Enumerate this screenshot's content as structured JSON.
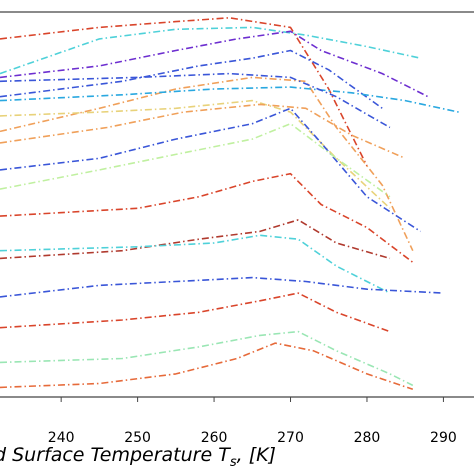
{
  "chart_data": {
    "type": "line",
    "xlabel": "d Surface Temperature T_s, [K]",
    "xlabel_parts": {
      "main": "d Surface Temperature T",
      "sub": "s",
      "tail": ", [K]"
    },
    "xlim": [
      232,
      294
    ],
    "ylim": [
      0,
      1
    ],
    "x_ticks": [
      240,
      250,
      260,
      270,
      280,
      290
    ],
    "x_tick_labels": [
      "240",
      "250",
      "260",
      "270",
      "280",
      "290"
    ],
    "grid": false,
    "legend": "none",
    "line_style": "dash-dot",
    "series": [
      {
        "color": "#d9452b",
        "x": [
          232,
          245,
          255,
          262,
          270,
          275,
          280
        ],
        "y": [
          0.93,
          0.96,
          0.975,
          0.985,
          0.96,
          0.8,
          0.6
        ]
      },
      {
        "color": "#4fd1d9",
        "x": [
          232,
          245,
          255,
          265,
          272,
          280,
          287
        ],
        "y": [
          0.84,
          0.93,
          0.955,
          0.96,
          0.94,
          0.91,
          0.88
        ]
      },
      {
        "color": "#3a56d8",
        "x": [
          232,
          248,
          258,
          265,
          270,
          275,
          282
        ],
        "y": [
          0.78,
          0.82,
          0.86,
          0.88,
          0.9,
          0.85,
          0.75
        ]
      },
      {
        "color": "#6d2fd0",
        "x": [
          232,
          245,
          255,
          263,
          270,
          274,
          282,
          288
        ],
        "y": [
          0.83,
          0.86,
          0.9,
          0.93,
          0.95,
          0.9,
          0.84,
          0.78
        ]
      },
      {
        "color": "#f0a05a",
        "x": [
          232,
          245,
          255,
          265,
          272,
          276,
          282,
          286
        ],
        "y": [
          0.69,
          0.75,
          0.8,
          0.83,
          0.82,
          0.7,
          0.55,
          0.38
        ]
      },
      {
        "color": "#2aa8e0",
        "x": [
          232,
          248,
          260,
          270,
          278,
          285,
          292
        ],
        "y": [
          0.77,
          0.785,
          0.8,
          0.805,
          0.79,
          0.77,
          0.74
        ]
      },
      {
        "color": "#e8d27a",
        "x": [
          232,
          245,
          255,
          265,
          270,
          276,
          283
        ],
        "y": [
          0.73,
          0.74,
          0.75,
          0.77,
          0.74,
          0.62,
          0.49
        ]
      },
      {
        "color": "#3a56d8",
        "x": [
          232,
          245,
          255,
          265,
          270,
          274,
          280,
          287
        ],
        "y": [
          0.59,
          0.62,
          0.67,
          0.71,
          0.75,
          0.66,
          0.52,
          0.43
        ]
      },
      {
        "color": "#c0f0a0",
        "x": [
          232,
          245,
          255,
          265,
          270,
          276,
          283
        ],
        "y": [
          0.54,
          0.59,
          0.63,
          0.67,
          0.71,
          0.62,
          0.52
        ]
      },
      {
        "color": "#d9452b",
        "x": [
          232,
          250,
          258,
          265,
          270,
          274,
          280,
          286
        ],
        "y": [
          0.47,
          0.49,
          0.52,
          0.56,
          0.58,
          0.5,
          0.44,
          0.35
        ]
      },
      {
        "color": "#b03a2e",
        "x": [
          232,
          248,
          258,
          266,
          271,
          276,
          283
        ],
        "y": [
          0.36,
          0.38,
          0.41,
          0.43,
          0.46,
          0.4,
          0.36
        ]
      },
      {
        "color": "#4fd1d9",
        "x": [
          232,
          250,
          260,
          266,
          271,
          276,
          283
        ],
        "y": [
          0.38,
          0.39,
          0.4,
          0.42,
          0.41,
          0.34,
          0.27
        ]
      },
      {
        "color": "#3a56d8",
        "x": [
          232,
          245,
          255,
          265,
          272,
          280,
          290
        ],
        "y": [
          0.26,
          0.29,
          0.3,
          0.31,
          0.3,
          0.28,
          0.27
        ]
      },
      {
        "color": "#d9452b",
        "x": [
          232,
          248,
          258,
          266,
          271,
          276,
          283
        ],
        "y": [
          0.18,
          0.2,
          0.22,
          0.25,
          0.27,
          0.22,
          0.17
        ]
      },
      {
        "color": "#9ae6b4",
        "x": [
          232,
          248,
          258,
          266,
          271,
          276,
          283,
          286
        ],
        "y": [
          0.09,
          0.1,
          0.13,
          0.16,
          0.17,
          0.12,
          0.06,
          0.03
        ]
      },
      {
        "color": "#e66a3a",
        "x": [
          232,
          245,
          255,
          263,
          268,
          273,
          280,
          286
        ],
        "y": [
          0.025,
          0.035,
          0.06,
          0.1,
          0.14,
          0.12,
          0.06,
          0.02
        ]
      },
      {
        "color": "#f0a05a",
        "x": [
          232,
          246,
          256,
          266,
          272,
          278,
          285
        ],
        "y": [
          0.66,
          0.7,
          0.74,
          0.76,
          0.75,
          0.68,
          0.62
        ]
      },
      {
        "color": "#3a56d8",
        "x": [
          232,
          250,
          262,
          270,
          276,
          283
        ],
        "y": [
          0.82,
          0.83,
          0.84,
          0.83,
          0.78,
          0.7
        ]
      }
    ]
  }
}
